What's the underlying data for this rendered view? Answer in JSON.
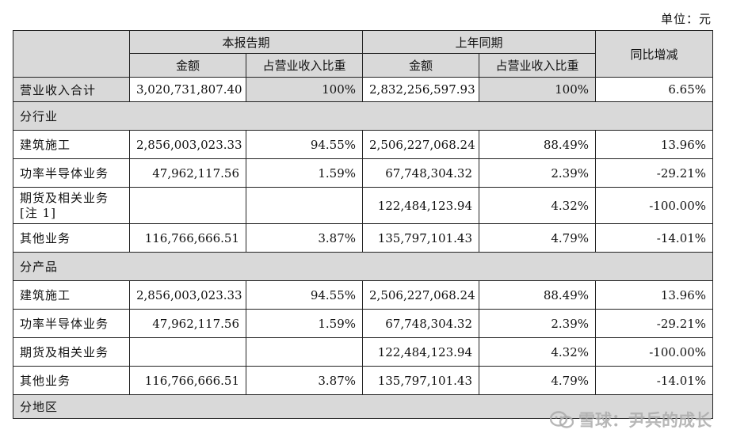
{
  "unit_label": "单位：元",
  "header": {
    "first_col": "",
    "current_period": "本报告期",
    "prior_period": "上年同期",
    "yoy": "同比增减",
    "amount": "金额",
    "revenue_share": "占营业收入比重"
  },
  "total": {
    "label": "营业收入合计",
    "cur_amount": "3,020,731,807.40",
    "cur_share": "100%",
    "prev_amount": "2,832,256,597.93",
    "prev_share": "100%",
    "yoy": "6.65%"
  },
  "sections": [
    {
      "title": "分行业",
      "rows": [
        {
          "label": "建筑施工",
          "cur_amount": "2,856,003,023.33",
          "cur_share": "94.55%",
          "prev_amount": "2,506,227,068.24",
          "prev_share": "88.49%",
          "yoy": "13.96%"
        },
        {
          "label": "功率半导体业务",
          "cur_amount": "47,962,117.56",
          "cur_share": "1.59%",
          "prev_amount": "67,748,304.32",
          "prev_share": "2.39%",
          "yoy": "-29.21%"
        },
        {
          "label": "期货及相关业务[注 1]",
          "cur_amount": "",
          "cur_share": "",
          "prev_amount": "122,484,123.94",
          "prev_share": "4.32%",
          "yoy": "-100.00%"
        },
        {
          "label": "其他业务",
          "cur_amount": "116,766,666.51",
          "cur_share": "3.87%",
          "prev_amount": "135,797,101.43",
          "prev_share": "4.79%",
          "yoy": "-14.01%"
        }
      ]
    },
    {
      "title": "分产品",
      "rows": [
        {
          "label": "建筑施工",
          "cur_amount": "2,856,003,023.33",
          "cur_share": "94.55%",
          "prev_amount": "2,506,227,068.24",
          "prev_share": "88.49%",
          "yoy": "13.96%"
        },
        {
          "label": "功率半导体业务",
          "cur_amount": "47,962,117.56",
          "cur_share": "1.59%",
          "prev_amount": "67,748,304.32",
          "prev_share": "2.39%",
          "yoy": "-29.21%"
        },
        {
          "label": "期货及相关业务",
          "cur_amount": "",
          "cur_share": "",
          "prev_amount": "122,484,123.94",
          "prev_share": "4.32%",
          "yoy": "-100.00%"
        },
        {
          "label": "其他业务",
          "cur_amount": "116,766,666.51",
          "cur_share": "3.87%",
          "prev_amount": "135,797,101.43",
          "prev_share": "4.79%",
          "yoy": "-14.01%"
        }
      ]
    },
    {
      "title": "分地区",
      "rows": []
    }
  ],
  "watermark": {
    "icon": "snowball-logo-icon",
    "text": "雪球：尹兵的成长"
  },
  "colors": {
    "header_bg": "#d9d9d9",
    "border": "#222222"
  }
}
